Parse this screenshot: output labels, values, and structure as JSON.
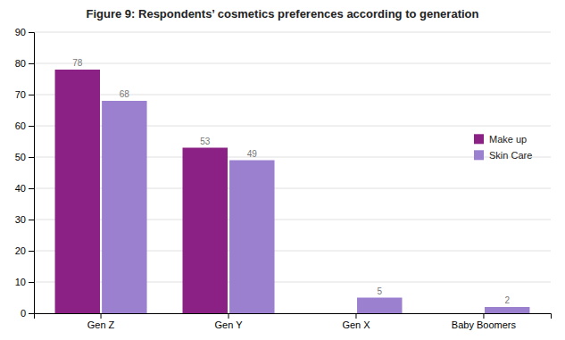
{
  "chart_data": {
    "type": "bar",
    "title": "Figure 9: Respondents’ cosmetics preferences according to generation",
    "categories": [
      "Gen Z",
      "Gen Y",
      "Gen X",
      "Baby Boomers"
    ],
    "series": [
      {
        "name": "Make up",
        "color": "#8B2085",
        "values": [
          78,
          53,
          0,
          0
        ]
      },
      {
        "name": "Skin Care",
        "color": "#9B80D0",
        "values": [
          68,
          49,
          5,
          2
        ]
      }
    ],
    "ylim": [
      0,
      90
    ],
    "yticks": [
      0,
      10,
      20,
      30,
      40,
      50,
      60,
      70,
      80,
      90
    ],
    "grid": true,
    "legend": "right",
    "data_labels": true
  }
}
